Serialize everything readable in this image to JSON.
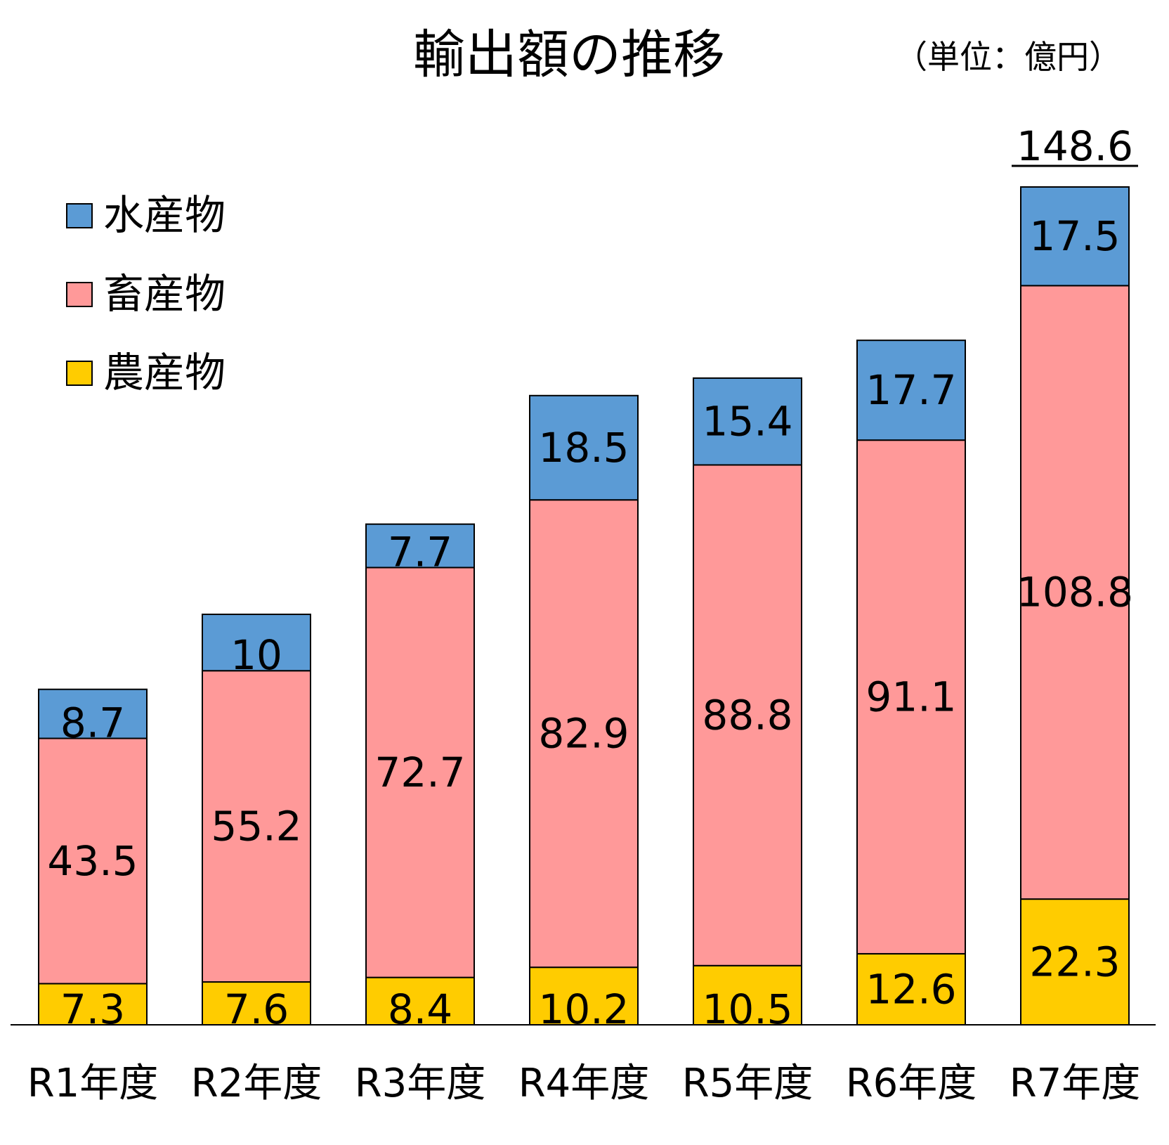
{
  "chart_data": {
    "type": "bar",
    "stacked": true,
    "title": "輸出額の推移",
    "unit_note": "（単位：億円）",
    "categories": [
      "R1年度",
      "R2年度",
      "R3年度",
      "R4年度",
      "R5年度",
      "R6年度",
      "R7年度"
    ],
    "series": [
      {
        "name": "農産物",
        "color": "#ffcc00",
        "values": [
          7.3,
          7.6,
          8.4,
          10.2,
          10.5,
          12.6,
          22.3
        ]
      },
      {
        "name": "畜産物",
        "color": "#ff9999",
        "values": [
          43.5,
          55.2,
          72.7,
          82.9,
          88.8,
          91.1,
          108.8
        ]
      },
      {
        "name": "水産物",
        "color": "#5b9bd5",
        "values": [
          8.7,
          10,
          7.7,
          18.5,
          15.4,
          17.7,
          17.5
        ]
      }
    ],
    "legend_order": [
      "水産物",
      "畜産物",
      "農産物"
    ],
    "legend_position": "top-left",
    "totals": [
      {
        "category": "R7年度",
        "label": "148.6"
      }
    ],
    "ylim": [
      0,
      148.6
    ],
    "grid": false,
    "y_axis_visible": false
  }
}
